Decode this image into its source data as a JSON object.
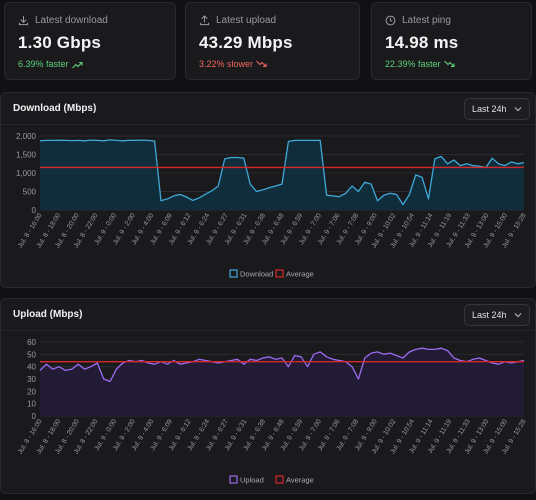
{
  "stats": [
    {
      "label": "Latest download",
      "value": "1.30 Gbps",
      "delta": "6.39% faster",
      "trend": "up",
      "icon": "download-icon",
      "color": "#5fd07a"
    },
    {
      "label": "Latest upload",
      "value": "43.29 Mbps",
      "delta": "3.22% slower",
      "trend": "down",
      "icon": "upload-icon",
      "color": "#f0685f"
    },
    {
      "label": "Latest ping",
      "value": "14.98 ms",
      "delta": "22.39% faster",
      "trend": "down",
      "icon": "clock-icon",
      "color": "#5fd07a"
    }
  ],
  "x_labels": [
    "Jul. 8 - 16:00",
    "Jul. 8 - 18:00",
    "Jul. 8 - 20:00",
    "Jul. 8 - 22:00",
    "Jul. 9 - 0:00",
    "Jul. 9 - 2:00",
    "Jul. 9 - 4:00",
    "Jul. 9 - 6:09",
    "Jul. 9 - 6:12",
    "Jul. 9 - 6:24",
    "Jul. 9 - 6:27",
    "Jul. 9 - 6:31",
    "Jul. 9 - 6:38",
    "Jul. 9 - 6:48",
    "Jul. 9 - 6:59",
    "Jul. 9 - 7:00",
    "Jul. 9 - 7:06",
    "Jul. 9 - 7:08",
    "Jul. 9 - 9:00",
    "Jul. 9 - 10:02",
    "Jul. 9 - 10:54",
    "Jul. 9 - 11:14",
    "Jul. 9 - 11:19",
    "Jul. 9 - 11:33",
    "Jul. 9 - 13:00",
    "Jul. 9 - 15:00",
    "Jul. 9 - 15:28"
  ],
  "download": {
    "title": "Download (Mbps)",
    "range": "Last 24h",
    "chart_data": {
      "type": "line",
      "yticks": [
        "2,000",
        "1,500",
        "1,000",
        "500",
        "0"
      ],
      "ylim": [
        0,
        2000
      ],
      "average": 1150,
      "legend": [
        "Download",
        "Average"
      ],
      "colors": {
        "series": "#3ea8d8",
        "fill": "#10303f",
        "average": "#d62828"
      },
      "values": [
        1870,
        1880,
        1880,
        1885,
        1880,
        1875,
        1880,
        1870,
        1890,
        1880,
        1870,
        1895,
        1880,
        1870,
        1885,
        1880,
        1890,
        1880,
        1860,
        250,
        300,
        380,
        420,
        350,
        260,
        330,
        430,
        520,
        650,
        1380,
        1420,
        1420,
        1400,
        700,
        500,
        550,
        600,
        650,
        700,
        1850,
        1880,
        1880,
        1880,
        1880,
        1880,
        400,
        380,
        360,
        450,
        650,
        500,
        750,
        700,
        250,
        400,
        450,
        420,
        150,
        420,
        950,
        880,
        300,
        1380,
        1450,
        1250,
        1350,
        1200,
        1250,
        1200,
        1180,
        1150,
        1400,
        1250,
        1200,
        1300,
        1250,
        1280
      ]
    }
  },
  "upload": {
    "title": "Upload (Mbps)",
    "range": "Last 24h",
    "chart_data": {
      "type": "line",
      "yticks": [
        "60",
        "50",
        "40",
        "30",
        "20",
        "10",
        "0"
      ],
      "ylim": [
        0,
        60
      ],
      "average": 44,
      "legend": [
        "Upload",
        "Average"
      ],
      "colors": {
        "series": "#9b6bf0",
        "fill": "#241c3a",
        "average": "#d62828"
      },
      "values": [
        37,
        42,
        38,
        40,
        37,
        38,
        42,
        38,
        40,
        43,
        30,
        28,
        38,
        43,
        45,
        44,
        45,
        43,
        42,
        44,
        42,
        45,
        42,
        43,
        44,
        46,
        45,
        44,
        43,
        44,
        45,
        46,
        42,
        46,
        45,
        47,
        48,
        46,
        47,
        40,
        49,
        48,
        40,
        50,
        52,
        48,
        46,
        45,
        44,
        40,
        30,
        47,
        51,
        52,
        50,
        51,
        49,
        47,
        52,
        54,
        55,
        54,
        54,
        55,
        53,
        47,
        45,
        44,
        46,
        47,
        45,
        43,
        42,
        44,
        43,
        44,
        45
      ]
    }
  }
}
